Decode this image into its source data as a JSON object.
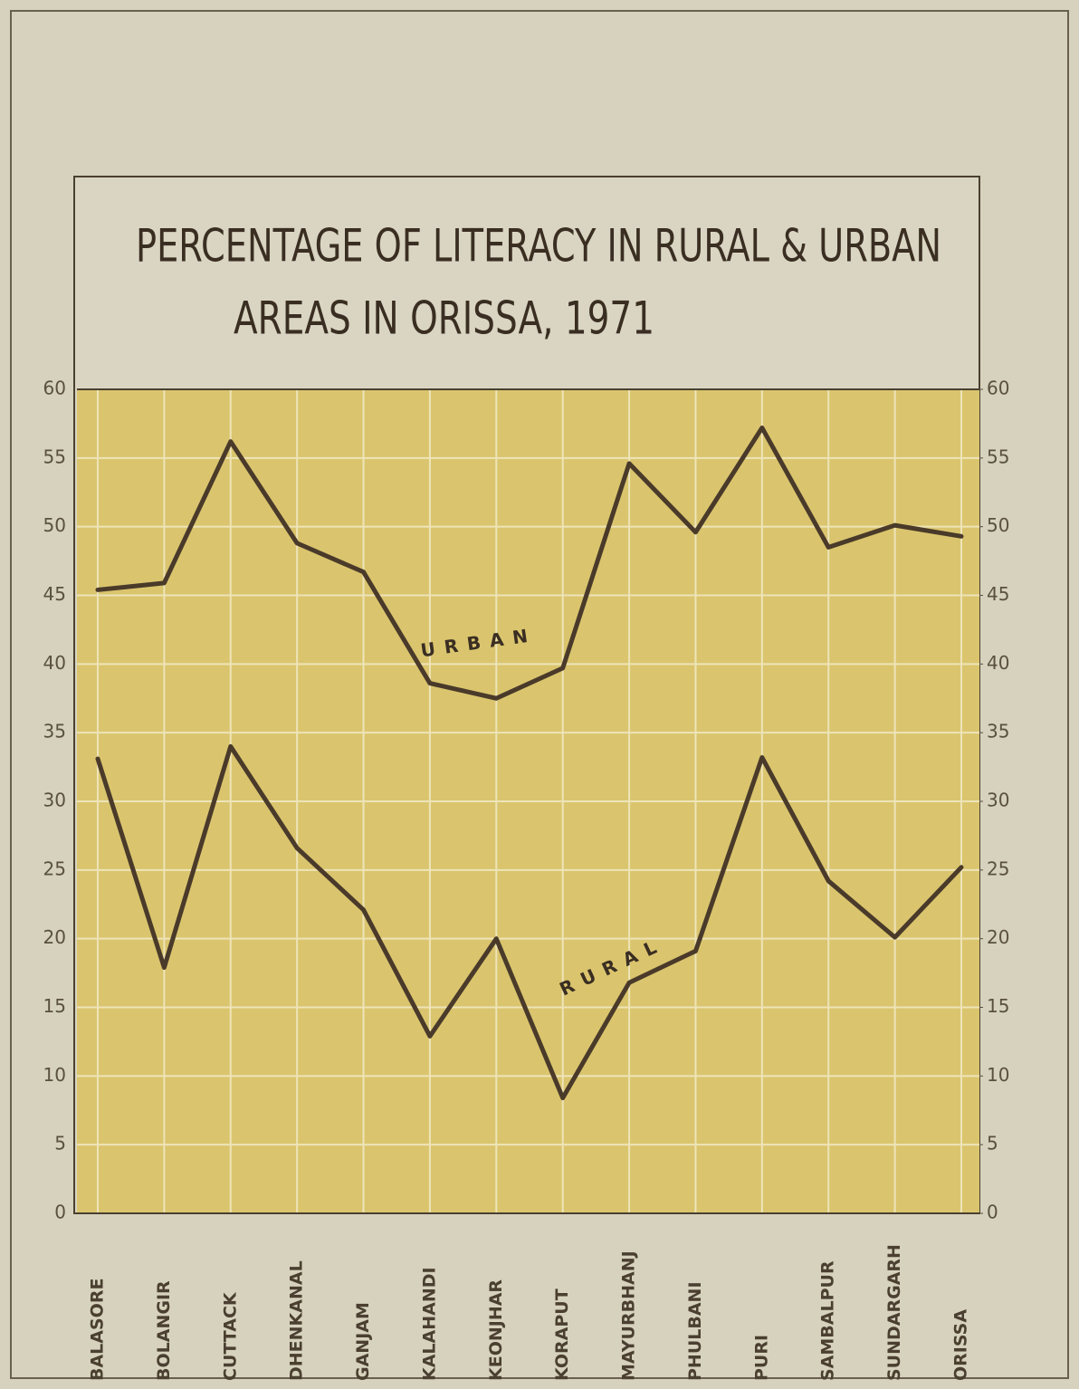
{
  "chart_data": {
    "type": "line",
    "title": [
      "PERCENTAGE OF LITERACY IN RURAL & URBAN",
      "AREAS IN ORISSA, 1971"
    ],
    "categories": [
      "BALASORE",
      "BOLANGIR",
      "CUTTACK",
      "DHENKANAL",
      "GANJAM",
      "KALAHANDI",
      "KEONJHAR",
      "KORAPUT",
      "MAYURBHANJ",
      "PHULBANI",
      "PURI",
      "SAMBALPUR",
      "SUNDARGARH",
      "ORISSA"
    ],
    "series": [
      {
        "name": "URBAN",
        "color": "#4a3a2a",
        "values": [
          45.4,
          45.9,
          56.2,
          48.8,
          46.7,
          38.6,
          37.5,
          39.7,
          54.6,
          49.6,
          57.2,
          48.5,
          50.1,
          49.3
        ]
      },
      {
        "name": "RURAL",
        "color": "#4a3a2a",
        "values": [
          33.1,
          17.9,
          34.0,
          26.6,
          22.1,
          12.9,
          20.0,
          8.4,
          16.8,
          19.1,
          33.2,
          24.2,
          20.1,
          25.2
        ]
      }
    ],
    "ylim": [
      0,
      60
    ],
    "yticks": [
      0,
      5,
      10,
      15,
      20,
      25,
      30,
      35,
      40,
      45,
      50,
      55,
      60
    ],
    "y2lim": [
      0,
      60
    ],
    "y2ticks": [
      0,
      5,
      10,
      15,
      20,
      25,
      30,
      35,
      40,
      45,
      50,
      55,
      60
    ],
    "grid": true,
    "plot_color": "#dac56e"
  }
}
